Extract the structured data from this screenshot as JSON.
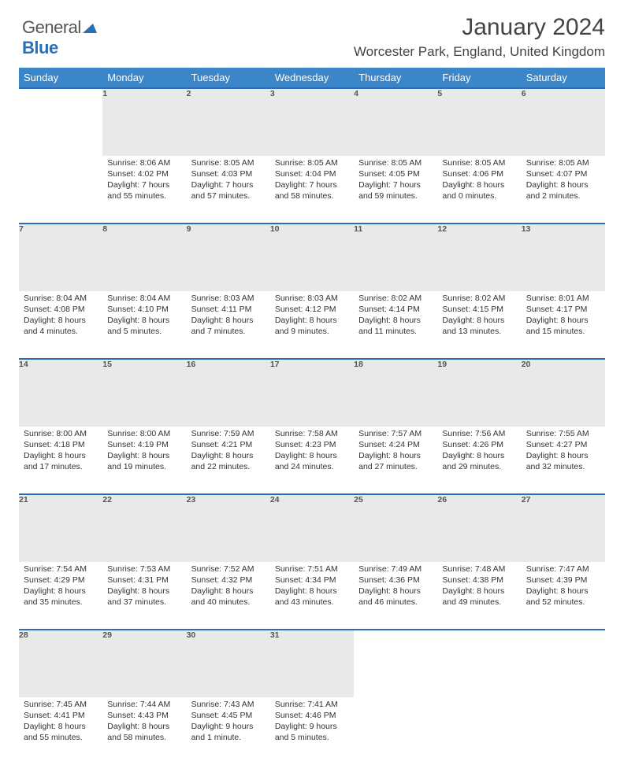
{
  "logo": {
    "word1": "General",
    "word2": "Blue"
  },
  "header": {
    "month_title": "January 2024",
    "location": "Worcester Park, England, United Kingdom"
  },
  "colors": {
    "header_bg": "#3b86c8",
    "row_divider": "#2a6fb5",
    "daynum_bg": "#e9e9e9",
    "text": "#333333",
    "page_bg": "#ffffff"
  },
  "day_headers": [
    "Sunday",
    "Monday",
    "Tuesday",
    "Wednesday",
    "Thursday",
    "Friday",
    "Saturday"
  ],
  "weeks": [
    [
      null,
      {
        "n": "1",
        "sr": "Sunrise: 8:06 AM",
        "ss": "Sunset: 4:02 PM",
        "d1": "Daylight: 7 hours",
        "d2": "and 55 minutes."
      },
      {
        "n": "2",
        "sr": "Sunrise: 8:05 AM",
        "ss": "Sunset: 4:03 PM",
        "d1": "Daylight: 7 hours",
        "d2": "and 57 minutes."
      },
      {
        "n": "3",
        "sr": "Sunrise: 8:05 AM",
        "ss": "Sunset: 4:04 PM",
        "d1": "Daylight: 7 hours",
        "d2": "and 58 minutes."
      },
      {
        "n": "4",
        "sr": "Sunrise: 8:05 AM",
        "ss": "Sunset: 4:05 PM",
        "d1": "Daylight: 7 hours",
        "d2": "and 59 minutes."
      },
      {
        "n": "5",
        "sr": "Sunrise: 8:05 AM",
        "ss": "Sunset: 4:06 PM",
        "d1": "Daylight: 8 hours",
        "d2": "and 0 minutes."
      },
      {
        "n": "6",
        "sr": "Sunrise: 8:05 AM",
        "ss": "Sunset: 4:07 PM",
        "d1": "Daylight: 8 hours",
        "d2": "and 2 minutes."
      }
    ],
    [
      {
        "n": "7",
        "sr": "Sunrise: 8:04 AM",
        "ss": "Sunset: 4:08 PM",
        "d1": "Daylight: 8 hours",
        "d2": "and 4 minutes."
      },
      {
        "n": "8",
        "sr": "Sunrise: 8:04 AM",
        "ss": "Sunset: 4:10 PM",
        "d1": "Daylight: 8 hours",
        "d2": "and 5 minutes."
      },
      {
        "n": "9",
        "sr": "Sunrise: 8:03 AM",
        "ss": "Sunset: 4:11 PM",
        "d1": "Daylight: 8 hours",
        "d2": "and 7 minutes."
      },
      {
        "n": "10",
        "sr": "Sunrise: 8:03 AM",
        "ss": "Sunset: 4:12 PM",
        "d1": "Daylight: 8 hours",
        "d2": "and 9 minutes."
      },
      {
        "n": "11",
        "sr": "Sunrise: 8:02 AM",
        "ss": "Sunset: 4:14 PM",
        "d1": "Daylight: 8 hours",
        "d2": "and 11 minutes."
      },
      {
        "n": "12",
        "sr": "Sunrise: 8:02 AM",
        "ss": "Sunset: 4:15 PM",
        "d1": "Daylight: 8 hours",
        "d2": "and 13 minutes."
      },
      {
        "n": "13",
        "sr": "Sunrise: 8:01 AM",
        "ss": "Sunset: 4:17 PM",
        "d1": "Daylight: 8 hours",
        "d2": "and 15 minutes."
      }
    ],
    [
      {
        "n": "14",
        "sr": "Sunrise: 8:00 AM",
        "ss": "Sunset: 4:18 PM",
        "d1": "Daylight: 8 hours",
        "d2": "and 17 minutes."
      },
      {
        "n": "15",
        "sr": "Sunrise: 8:00 AM",
        "ss": "Sunset: 4:19 PM",
        "d1": "Daylight: 8 hours",
        "d2": "and 19 minutes."
      },
      {
        "n": "16",
        "sr": "Sunrise: 7:59 AM",
        "ss": "Sunset: 4:21 PM",
        "d1": "Daylight: 8 hours",
        "d2": "and 22 minutes."
      },
      {
        "n": "17",
        "sr": "Sunrise: 7:58 AM",
        "ss": "Sunset: 4:23 PM",
        "d1": "Daylight: 8 hours",
        "d2": "and 24 minutes."
      },
      {
        "n": "18",
        "sr": "Sunrise: 7:57 AM",
        "ss": "Sunset: 4:24 PM",
        "d1": "Daylight: 8 hours",
        "d2": "and 27 minutes."
      },
      {
        "n": "19",
        "sr": "Sunrise: 7:56 AM",
        "ss": "Sunset: 4:26 PM",
        "d1": "Daylight: 8 hours",
        "d2": "and 29 minutes."
      },
      {
        "n": "20",
        "sr": "Sunrise: 7:55 AM",
        "ss": "Sunset: 4:27 PM",
        "d1": "Daylight: 8 hours",
        "d2": "and 32 minutes."
      }
    ],
    [
      {
        "n": "21",
        "sr": "Sunrise: 7:54 AM",
        "ss": "Sunset: 4:29 PM",
        "d1": "Daylight: 8 hours",
        "d2": "and 35 minutes."
      },
      {
        "n": "22",
        "sr": "Sunrise: 7:53 AM",
        "ss": "Sunset: 4:31 PM",
        "d1": "Daylight: 8 hours",
        "d2": "and 37 minutes."
      },
      {
        "n": "23",
        "sr": "Sunrise: 7:52 AM",
        "ss": "Sunset: 4:32 PM",
        "d1": "Daylight: 8 hours",
        "d2": "and 40 minutes."
      },
      {
        "n": "24",
        "sr": "Sunrise: 7:51 AM",
        "ss": "Sunset: 4:34 PM",
        "d1": "Daylight: 8 hours",
        "d2": "and 43 minutes."
      },
      {
        "n": "25",
        "sr": "Sunrise: 7:49 AM",
        "ss": "Sunset: 4:36 PM",
        "d1": "Daylight: 8 hours",
        "d2": "and 46 minutes."
      },
      {
        "n": "26",
        "sr": "Sunrise: 7:48 AM",
        "ss": "Sunset: 4:38 PM",
        "d1": "Daylight: 8 hours",
        "d2": "and 49 minutes."
      },
      {
        "n": "27",
        "sr": "Sunrise: 7:47 AM",
        "ss": "Sunset: 4:39 PM",
        "d1": "Daylight: 8 hours",
        "d2": "and 52 minutes."
      }
    ],
    [
      {
        "n": "28",
        "sr": "Sunrise: 7:45 AM",
        "ss": "Sunset: 4:41 PM",
        "d1": "Daylight: 8 hours",
        "d2": "and 55 minutes."
      },
      {
        "n": "29",
        "sr": "Sunrise: 7:44 AM",
        "ss": "Sunset: 4:43 PM",
        "d1": "Daylight: 8 hours",
        "d2": "and 58 minutes."
      },
      {
        "n": "30",
        "sr": "Sunrise: 7:43 AM",
        "ss": "Sunset: 4:45 PM",
        "d1": "Daylight: 9 hours",
        "d2": "and 1 minute."
      },
      {
        "n": "31",
        "sr": "Sunrise: 7:41 AM",
        "ss": "Sunset: 4:46 PM",
        "d1": "Daylight: 9 hours",
        "d2": "and 5 minutes."
      },
      null,
      null,
      null
    ]
  ]
}
